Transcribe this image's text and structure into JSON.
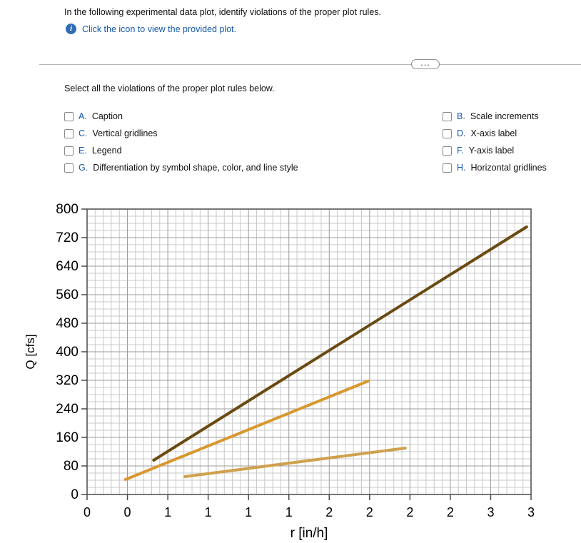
{
  "header": {
    "instruction": "In the following experimental data plot, identify violations of the proper plot rules.",
    "link_text": "Click the icon to view the provided plot.",
    "info_glyph": "i"
  },
  "toolbar": {
    "more_label": "..."
  },
  "question": {
    "prompt": "Select all the violations of the proper plot rules below.",
    "options": [
      {
        "letter": "A.",
        "label": "Caption"
      },
      {
        "letter": "B.",
        "label": "Scale increments"
      },
      {
        "letter": "C.",
        "label": "Vertical gridlines"
      },
      {
        "letter": "D.",
        "label": "X-axis label"
      },
      {
        "letter": "E.",
        "label": "Legend"
      },
      {
        "letter": "F.",
        "label": "Y-axis label"
      },
      {
        "letter": "G.",
        "label": "Differentiation by symbol shape, color, and line style"
      },
      {
        "letter": "H.",
        "label": "Horizontal gridlines"
      }
    ]
  },
  "chart_data": {
    "type": "line",
    "title": "",
    "xlabel": "r [in/h]",
    "ylabel": "Q [cfs]",
    "xlim": [
      0,
      3
    ],
    "ylim": [
      0,
      800
    ],
    "x_tick_values": [
      0,
      0.2727,
      0.5455,
      0.8182,
      1.0909,
      1.3636,
      1.6364,
      1.9091,
      2.1818,
      2.4545,
      2.7273,
      3.0
    ],
    "x_tick_labels": [
      "0",
      "0",
      "1",
      "1",
      "1",
      "1",
      "2",
      "2",
      "2",
      "2",
      "3",
      "3"
    ],
    "y_ticks": [
      0,
      80,
      160,
      240,
      320,
      400,
      480,
      560,
      640,
      720,
      800
    ],
    "grid": {
      "vertical": true,
      "horizontal": true,
      "minor": true
    },
    "legend": "none",
    "series": [
      {
        "name": "dark-brown-line",
        "color": "#6a4a10",
        "points": [
          [
            0.45,
            96
          ],
          [
            2.97,
            750
          ]
        ]
      },
      {
        "name": "medium-orange-line",
        "color": "#d8982e",
        "points": [
          [
            0.26,
            42
          ],
          [
            1.9,
            318
          ]
        ]
      },
      {
        "name": "light-tan-line",
        "color": "#cfa14e",
        "points": [
          [
            0.66,
            50
          ],
          [
            2.15,
            130
          ]
        ]
      }
    ],
    "colors": {
      "grid_minor": "#c9c9c9",
      "grid_major": "#9b9b9b",
      "axis": "#4a4a4a",
      "text": "#000000"
    }
  }
}
